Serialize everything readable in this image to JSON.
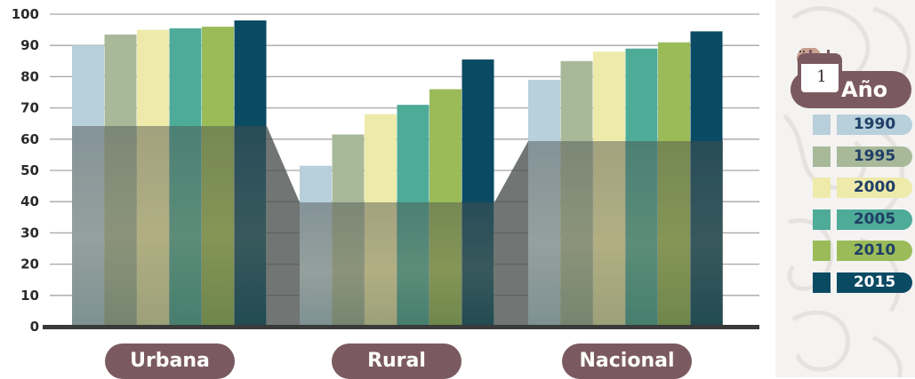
{
  "chart_data": {
    "type": "bar",
    "categories": [
      "Urbana",
      "Rural",
      "Nacional"
    ],
    "series": [
      {
        "name": "1990",
        "values": [
          90,
          51.5,
          79
        ],
        "color": "#b8cfdc"
      },
      {
        "name": "1995",
        "values": [
          93.5,
          61.5,
          85
        ],
        "color": "#a8b99a"
      },
      {
        "name": "2000",
        "values": [
          95,
          68,
          88
        ],
        "color": "#eeeaaa"
      },
      {
        "name": "2005",
        "values": [
          95.5,
          71,
          89
        ],
        "color": "#4eab98"
      },
      {
        "name": "2010",
        "values": [
          96,
          76,
          91
        ],
        "color": "#9bbb59"
      },
      {
        "name": "2015",
        "values": [
          98,
          85.5,
          94.5
        ],
        "color": "#0b4a63"
      }
    ],
    "yticks": [
      0,
      10,
      20,
      30,
      40,
      50,
      60,
      70,
      80,
      90,
      100
    ],
    "ylim": [
      0,
      100
    ],
    "grid": true,
    "legend_placement": "right"
  },
  "legend": {
    "title": "Año",
    "icon": "calendar-icon",
    "calendar_day": "1"
  },
  "colors": {
    "pill": "#7a5a60",
    "axis": "#3a3a3a",
    "photo_tint": "#2f3a3c"
  }
}
